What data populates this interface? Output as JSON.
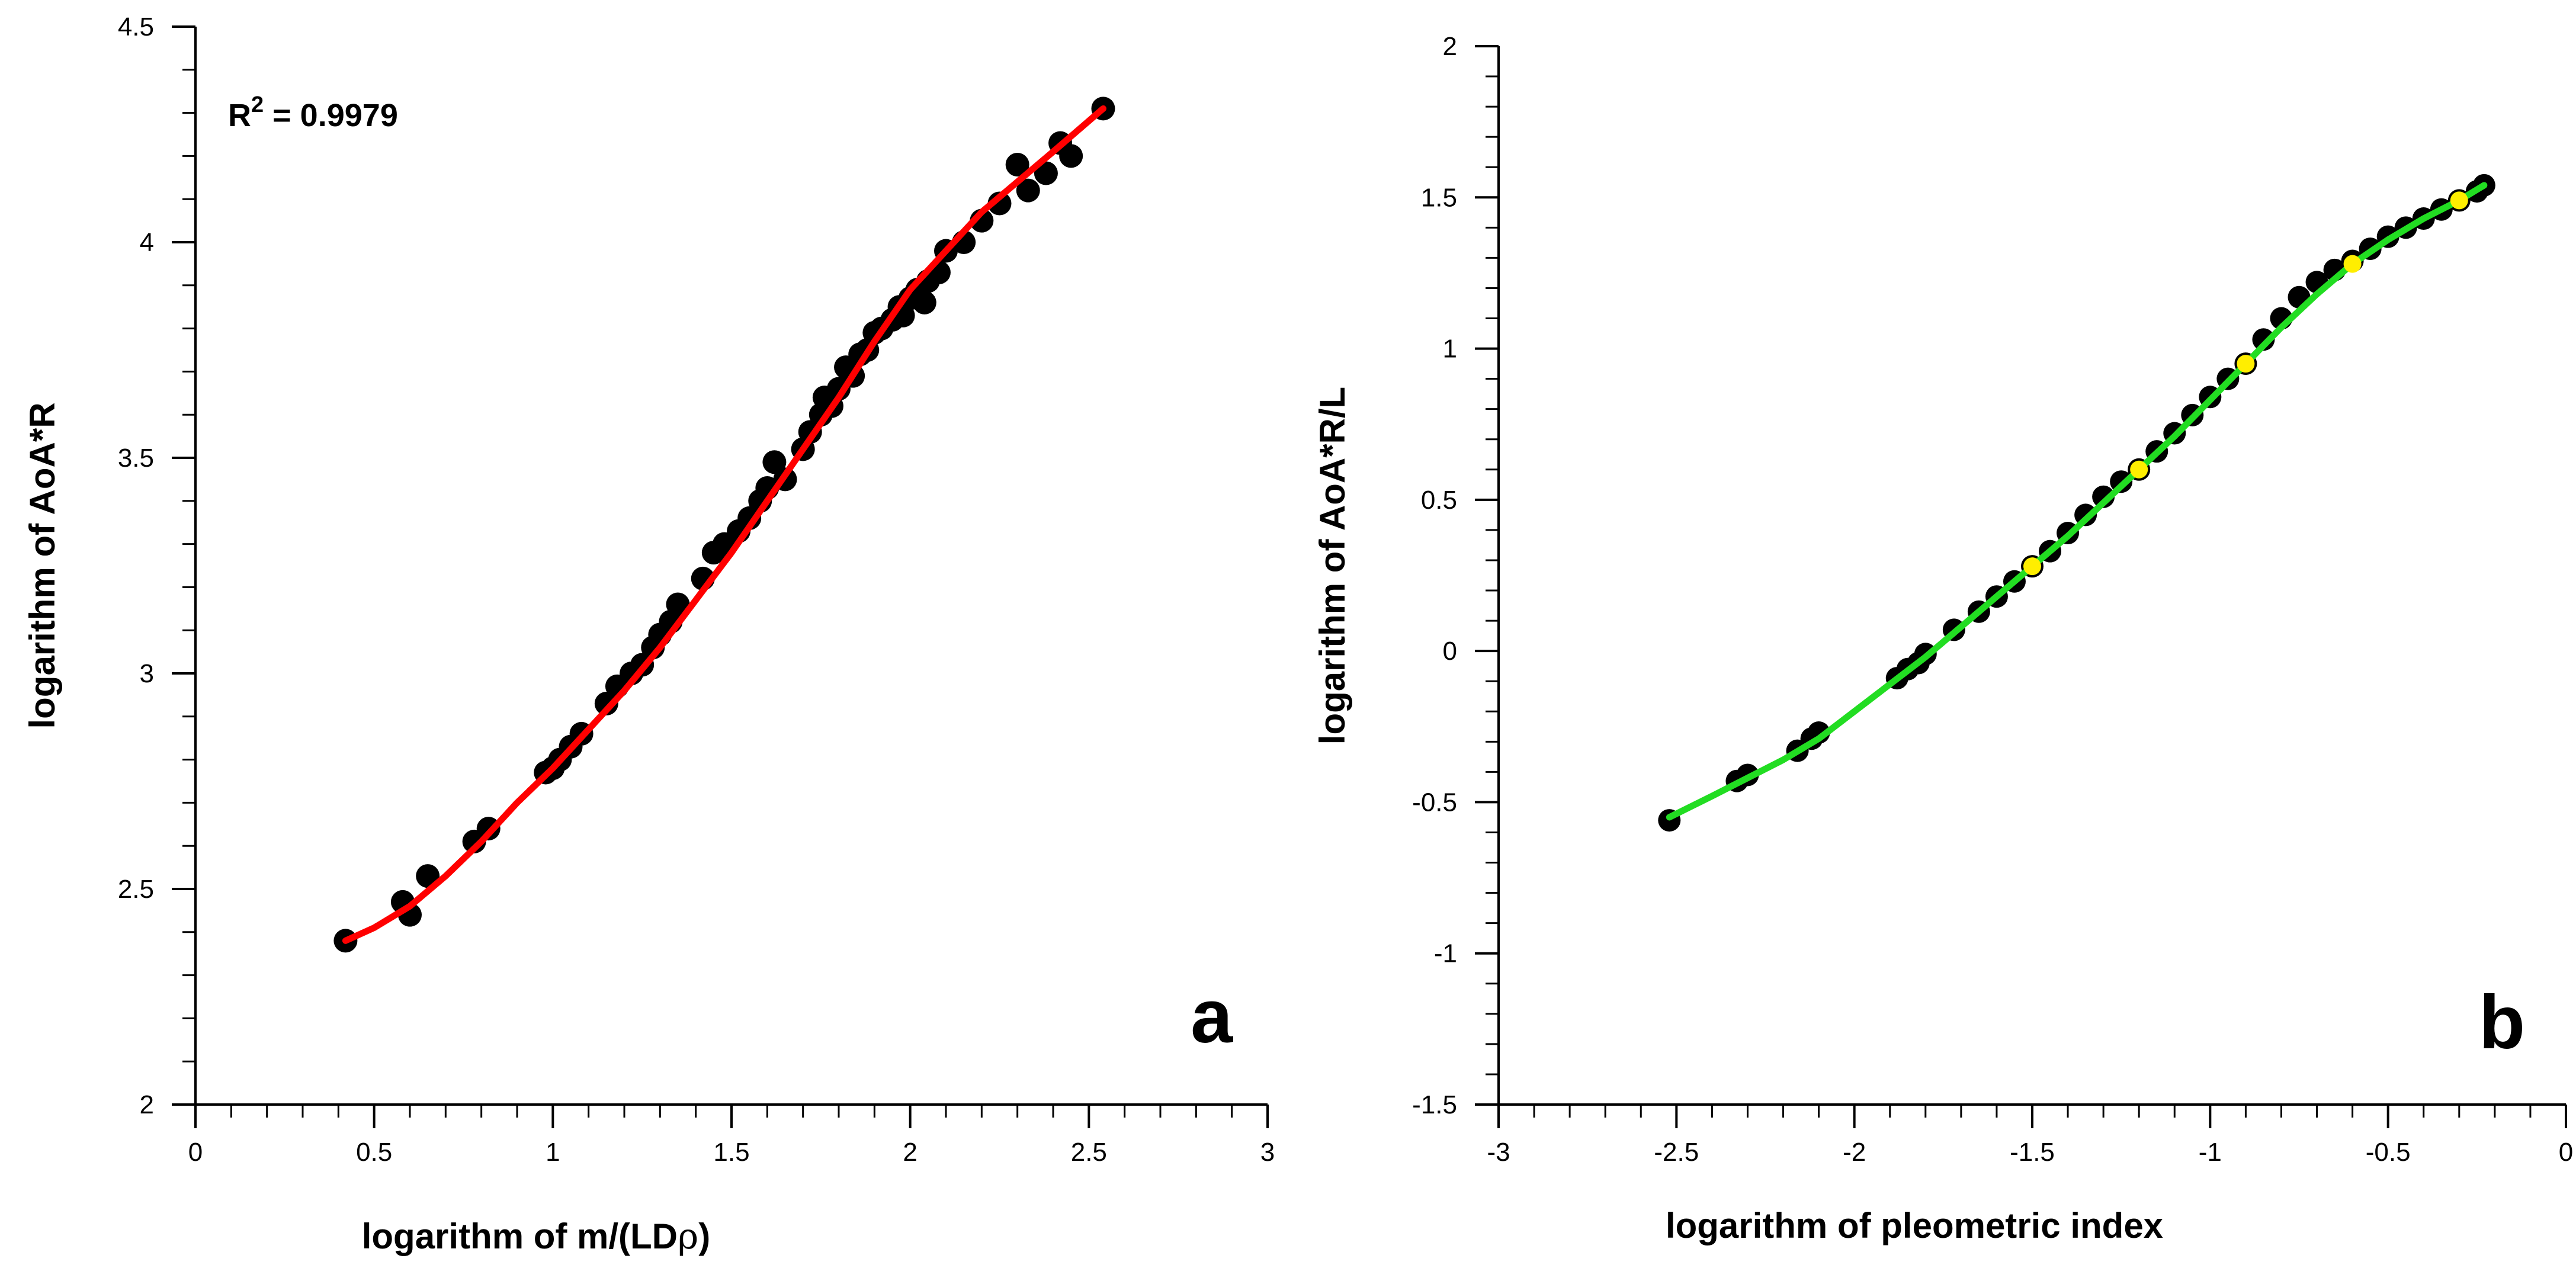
{
  "chart_data": [
    {
      "type": "scatter",
      "panel_label": "a",
      "xlabel_prefix": "logarithm of m/(LD",
      "xlabel_symbol": "ρ",
      "xlabel_suffix": ")",
      "ylabel": "logarithm of AoA*R",
      "xlim": [
        0,
        3
      ],
      "ylim": [
        2,
        4.5
      ],
      "xticks": [
        0,
        0.5,
        1,
        1.5,
        2,
        2.5,
        3
      ],
      "xtick_labels": [
        "0",
        "0.5",
        "1",
        "1.5",
        "2",
        "2.5",
        "3"
      ],
      "yticks": [
        2,
        2.5,
        3,
        3.5,
        4,
        4.5
      ],
      "ytick_labels": [
        "2",
        "2.5",
        "3",
        "3.5",
        "4",
        "4.5"
      ],
      "annotation": {
        "base": "R",
        "sup": "2",
        "rest": " = 0.9979"
      },
      "colors": {
        "points": "#000000",
        "fit": "#ff0000"
      },
      "series": [
        {
          "name": "data",
          "style": "points",
          "x": [
            0.42,
            0.58,
            0.6,
            0.65,
            0.78,
            0.82,
            0.98,
            1.0,
            1.02,
            1.05,
            1.08,
            1.15,
            1.18,
            1.22,
            1.25,
            1.28,
            1.3,
            1.33,
            1.35,
            1.42,
            1.45,
            1.48,
            1.52,
            1.55,
            1.58,
            1.6,
            1.62,
            1.65,
            1.7,
            1.72,
            1.75,
            1.76,
            1.78,
            1.8,
            1.82,
            1.84,
            1.86,
            1.88,
            1.9,
            1.92,
            1.95,
            1.97,
            1.98,
            2.0,
            2.02,
            2.04,
            2.05,
            2.08,
            2.1,
            2.15,
            2.2,
            2.25,
            2.3,
            2.33,
            2.38,
            2.42,
            2.45,
            2.54
          ],
          "y": [
            2.38,
            2.47,
            2.44,
            2.53,
            2.61,
            2.64,
            2.77,
            2.78,
            2.8,
            2.83,
            2.86,
            2.93,
            2.97,
            3.0,
            3.02,
            3.06,
            3.09,
            3.12,
            3.16,
            3.22,
            3.28,
            3.3,
            3.33,
            3.36,
            3.4,
            3.43,
            3.49,
            3.45,
            3.52,
            3.56,
            3.6,
            3.64,
            3.62,
            3.66,
            3.71,
            3.69,
            3.74,
            3.75,
            3.79,
            3.8,
            3.82,
            3.85,
            3.83,
            3.87,
            3.89,
            3.86,
            3.91,
            3.93,
            3.98,
            4.0,
            4.05,
            4.09,
            4.18,
            4.12,
            4.16,
            4.23,
            4.2,
            4.31
          ]
        },
        {
          "name": "fit",
          "style": "line",
          "x": [
            0.42,
            0.5,
            0.6,
            0.7,
            0.8,
            0.9,
            1.0,
            1.1,
            1.2,
            1.3,
            1.4,
            1.5,
            1.6,
            1.7,
            1.8,
            1.9,
            2.0,
            2.1,
            2.2,
            2.3,
            2.4,
            2.54
          ],
          "y": [
            2.38,
            2.41,
            2.46,
            2.53,
            2.61,
            2.7,
            2.78,
            2.87,
            2.96,
            3.06,
            3.17,
            3.28,
            3.4,
            3.52,
            3.64,
            3.77,
            3.89,
            3.98,
            4.07,
            4.14,
            4.21,
            4.31
          ]
        }
      ]
    },
    {
      "type": "scatter",
      "panel_label": "b",
      "xlabel": "logarithm of pleometric index",
      "ylabel": "logarithm of AoA*R/L",
      "xlim": [
        -3,
        0
      ],
      "ylim": [
        -1.5,
        2
      ],
      "xticks": [
        -3,
        -2.5,
        -2,
        -1.5,
        -1,
        -0.5,
        0
      ],
      "xtick_labels": [
        "-3",
        "-2.5",
        "-2",
        "-1.5",
        "-1",
        "-0.5",
        "0"
      ],
      "yticks": [
        -1.5,
        -1,
        -0.5,
        0,
        0.5,
        1,
        1.5,
        2
      ],
      "ytick_labels": [
        "-1.5",
        "-1",
        "-0.5",
        "0",
        "0.5",
        "1",
        "1.5",
        "2"
      ],
      "colors": {
        "points": "#000000",
        "fit": "#22dd22",
        "highlight": "#ffee00"
      },
      "series": [
        {
          "name": "data",
          "style": "points",
          "x": [
            -2.52,
            -2.33,
            -2.3,
            -2.16,
            -2.12,
            -2.1,
            -1.88,
            -1.85,
            -1.82,
            -1.8,
            -1.72,
            -1.65,
            -1.6,
            -1.55,
            -1.5,
            -1.45,
            -1.4,
            -1.35,
            -1.3,
            -1.25,
            -1.2,
            -1.15,
            -1.1,
            -1.05,
            -1.0,
            -0.95,
            -0.9,
            -0.85,
            -0.8,
            -0.75,
            -0.7,
            -0.65,
            -0.6,
            -0.55,
            -0.5,
            -0.45,
            -0.4,
            -0.35,
            -0.3,
            -0.25,
            -0.23
          ],
          "y": [
            -0.56,
            -0.43,
            -0.41,
            -0.33,
            -0.29,
            -0.27,
            -0.09,
            -0.06,
            -0.04,
            -0.01,
            0.07,
            0.13,
            0.18,
            0.23,
            0.28,
            0.33,
            0.39,
            0.45,
            0.51,
            0.56,
            0.6,
            0.66,
            0.72,
            0.78,
            0.84,
            0.9,
            0.95,
            1.03,
            1.1,
            1.17,
            1.22,
            1.26,
            1.29,
            1.33,
            1.37,
            1.4,
            1.43,
            1.46,
            1.49,
            1.52,
            1.54
          ]
        },
        {
          "name": "fit",
          "style": "line",
          "x": [
            -2.52,
            -2.4,
            -2.3,
            -2.2,
            -2.1,
            -2.0,
            -1.9,
            -1.8,
            -1.7,
            -1.6,
            -1.5,
            -1.4,
            -1.3,
            -1.2,
            -1.1,
            -1.0,
            -0.9,
            -0.8,
            -0.7,
            -0.6,
            -0.5,
            -0.4,
            -0.3,
            -0.23
          ],
          "y": [
            -0.55,
            -0.48,
            -0.42,
            -0.36,
            -0.29,
            -0.2,
            -0.11,
            -0.02,
            0.08,
            0.18,
            0.28,
            0.38,
            0.49,
            0.6,
            0.71,
            0.83,
            0.95,
            1.07,
            1.18,
            1.28,
            1.36,
            1.43,
            1.49,
            1.54
          ]
        },
        {
          "name": "highlighted",
          "style": "highlight",
          "x": [
            -1.5,
            -1.2,
            -0.9,
            -0.6,
            -0.3
          ],
          "y": [
            0.28,
            0.6,
            0.95,
            1.28,
            1.49
          ]
        }
      ]
    }
  ]
}
